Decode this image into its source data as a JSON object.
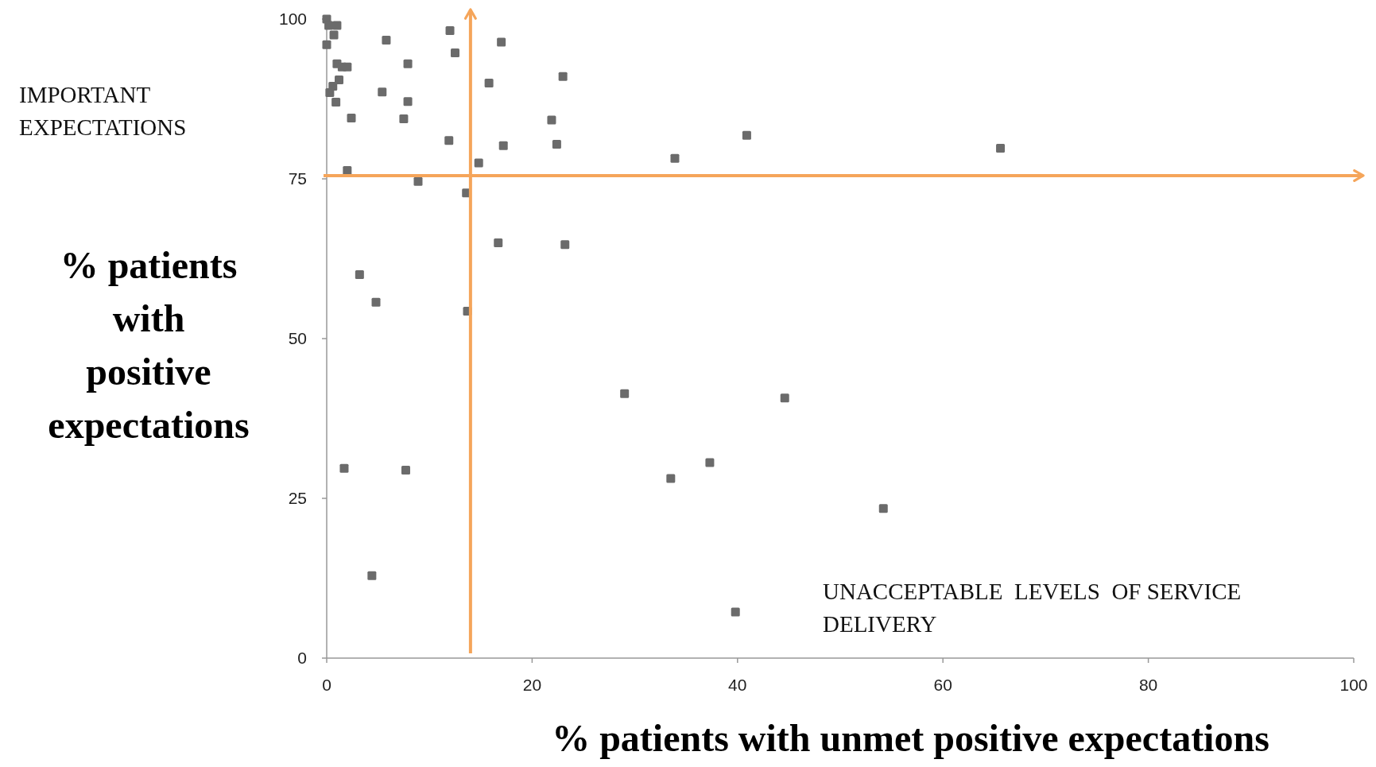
{
  "chart_data": {
    "type": "scatter",
    "xlabel": "% patients with unmet positive expectations",
    "ylabel": "% patients with positive expectations",
    "annotations": [
      "IMPORTANT EXPECTATIONS",
      "UNACCEPTABLE  LEVELS  OF SERVICE DELIVERY"
    ],
    "x": [
      0,
      0.2,
      1,
      0.7,
      0,
      1,
      1.5,
      2,
      1.2,
      0.6,
      0.3,
      0.9,
      2.4,
      2,
      5.8,
      7.9,
      5.4,
      7.9,
      7.5,
      12,
      12.5,
      11.9,
      15.8,
      17,
      17.2,
      14.8,
      8.9,
      13.6,
      21.9,
      23,
      22.4,
      33.9,
      40.9,
      65.6,
      16.7,
      23.2,
      3.2,
      4.8,
      13.7,
      29,
      44.6,
      37.3,
      33.5,
      54.2,
      39.8,
      4.4,
      1.7,
      7.7
    ],
    "values": [
      100,
      99,
      99,
      97.5,
      96,
      93,
      92.5,
      92.5,
      90.5,
      89.5,
      88.5,
      87,
      84.5,
      76.3,
      96.7,
      93,
      88.6,
      87.1,
      84.4,
      98.2,
      94.7,
      81,
      90,
      96.4,
      80.2,
      77.5,
      74.6,
      72.8,
      84.2,
      91,
      80.4,
      78.2,
      81.8,
      79.8,
      65,
      64.7,
      60,
      55.7,
      54.3,
      41.4,
      40.7,
      30.6,
      28.1,
      23.4,
      7.2,
      12.9,
      29.7,
      29.4
    ],
    "color": "#6b6b6b",
    "marker": "square",
    "xlim": [
      0,
      100
    ],
    "xticks": [
      0,
      20,
      40,
      60,
      80,
      100
    ],
    "ylim": [
      0,
      100
    ],
    "yticks": [
      0,
      25,
      50,
      75,
      100
    ],
    "grid": false,
    "ref_lines": [
      {
        "axis": "x",
        "value": 14,
        "color": "#f5a55a"
      },
      {
        "axis": "y",
        "value": 75.5,
        "color": "#f5a55a"
      }
    ]
  }
}
